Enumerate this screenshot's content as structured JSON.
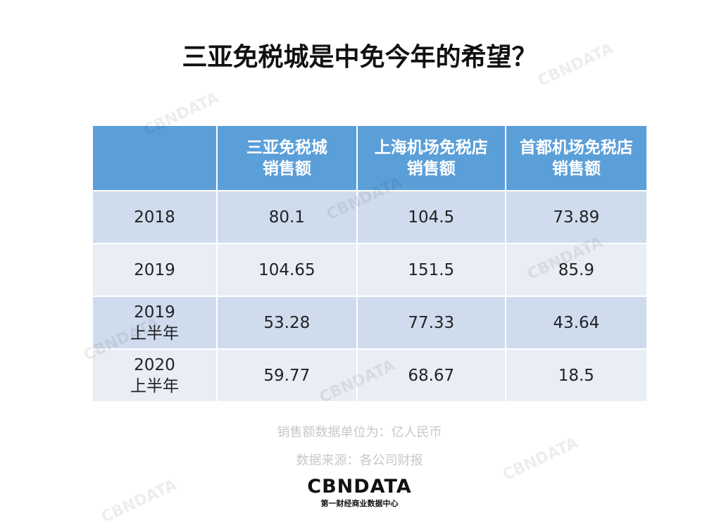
{
  "title": "三亚免税城是中免今年的希望？",
  "table": {
    "header": [
      "",
      "三亚免税城\n销售额",
      "上海机场免税店\n销售额",
      "首都机场免税店\n销售额"
    ],
    "rows": [
      [
        "2018",
        80.1,
        104.5,
        73.89
      ],
      [
        "2019",
        104.65,
        151.5,
        85.9
      ],
      [
        "2019\n上半年",
        53.28,
        77.33,
        43.64
      ],
      [
        "2020\n上半年",
        59.77,
        68.67,
        18.5
      ]
    ]
  },
  "notes": [
    "销售额数据单位为：亿人民币",
    "数据来源：各公司财报"
  ],
  "logo": {
    "name": "CBNDATA",
    "tagline": "第一财经商业数据中心"
  },
  "watermark": "CBNDATA"
}
